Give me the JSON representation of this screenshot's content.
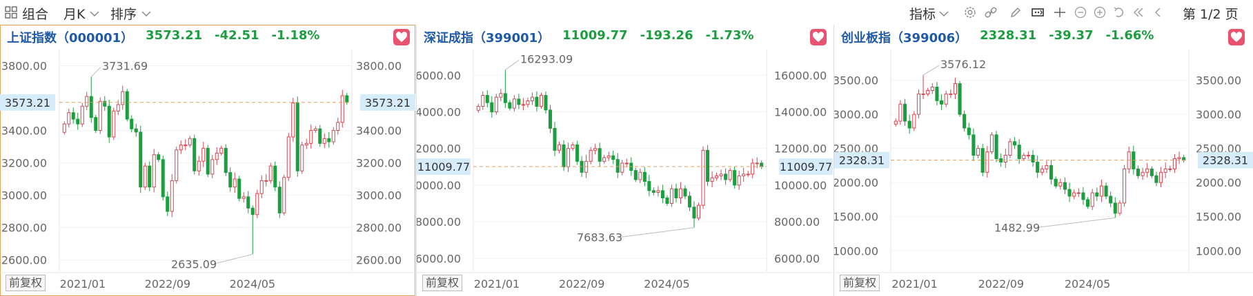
{
  "toolbar": {
    "combo_label": "组合",
    "period_label": "月K",
    "sort_label": "排序",
    "indicator_label": "指标",
    "page_label": "第 1/2 页"
  },
  "panels": [
    {
      "name": "上证指数（000001）",
      "price": "3573.21",
      "change": "-42.51",
      "change_pct": "-1.18%",
      "current_label": "3573.21",
      "adjust_label": "前复权",
      "high_label": "3731.69",
      "low_label": "2635.09"
    },
    {
      "name": "深证成指（399001）",
      "price": "11009.77",
      "change": "-193.26",
      "change_pct": "-1.73%",
      "current_label": "11009.77",
      "adjust_label": "前复权",
      "high_label": "16293.09",
      "low_label": "7683.63"
    },
    {
      "name": "创业板指（399006）",
      "price": "2328.31",
      "change": "-39.37",
      "change_pct": "-1.66%",
      "current_label": "2328.31",
      "adjust_label": "前复权",
      "high_label": "3576.12",
      "low_label": "1482.99"
    }
  ],
  "colors": {
    "up": "#d9434f",
    "down": "#1a9e3f",
    "accent": "#1f5aa8",
    "current_bg": "#d7ecfb",
    "current_line": "#e59a5a"
  },
  "chart_data": [
    {
      "type": "candlestick",
      "title": "上证指数（000001）",
      "x_ticks": [
        "2021/01",
        "2022/09",
        "2024/05"
      ],
      "y_ticks": [
        2600,
        2800,
        3000,
        3200,
        3400,
        3800
      ],
      "ylim": [
        2530,
        3900
      ],
      "current": 3573.21,
      "annotations": [
        {
          "text": "3731.69",
          "value": 3731.69
        },
        {
          "text": "2635.09",
          "value": 2635.09
        }
      ],
      "closes": [
        3440,
        3510,
        3470,
        3440,
        3550,
        3610,
        3480,
        3400,
        3580,
        3550,
        3360,
        3520,
        3560,
        3640,
        3470,
        3410,
        3390,
        3050,
        3180,
        3050,
        3250,
        3220,
        2990,
        2900,
        3090,
        3280,
        3310,
        3310,
        3350,
        3150,
        3210,
        3290,
        3130,
        3220,
        3260,
        3290,
        3140,
        3050,
        3100,
        2980,
        2990,
        2920,
        2880,
        3010,
        3090,
        3090,
        3180,
        3050,
        2890,
        3110,
        3360,
        3570,
        3150,
        3310,
        3320,
        3400,
        3410,
        3320,
        3350,
        3330,
        3400,
        3450,
        3615,
        3573
      ]
    },
    {
      "type": "candlestick",
      "title": "深证成指（399001）",
      "x_ticks": [
        "2021/01",
        "2022/09",
        "2024/05"
      ],
      "y_ticks": [
        6000,
        8000,
        10000,
        12000,
        14000,
        16000
      ],
      "ylim": [
        5300,
        17400
      ],
      "current": 11009.77,
      "annotations": [
        {
          "text": "16293.09",
          "value": 16293.09
        },
        {
          "text": "7683.63",
          "value": 7683.63
        }
      ],
      "closes": [
        14300,
        14900,
        14500,
        14000,
        14800,
        15000,
        14500,
        14200,
        14700,
        14400,
        14400,
        14600,
        14800,
        14300,
        14900,
        14100,
        13100,
        11900,
        12200,
        11000,
        12000,
        12200,
        11300,
        10700,
        11300,
        11900,
        12000,
        11300,
        11500,
        11600,
        11400,
        10700,
        11200,
        11200,
        10800,
        10300,
        10700,
        10200,
        9700,
        9600,
        9700,
        9300,
        9000,
        9800,
        9300,
        9800,
        9400,
        8800,
        8200,
        8900,
        11900,
        10200,
        10400,
        10500,
        10600,
        10300,
        10800,
        10000,
        10500,
        10600,
        10600,
        11200,
        11203,
        11009
      ]
    },
    {
      "type": "candlestick",
      "title": "创业板指（399006）",
      "x_ticks": [
        "2021/01",
        "2022/09",
        "2024/05"
      ],
      "y_ticks": [
        1000,
        1500,
        2000,
        2500,
        3000,
        3500
      ],
      "ylim": [
        700,
        3950
      ],
      "current": 2328.31,
      "annotations": [
        {
          "text": "3576.12",
          "value": 3576.12
        },
        {
          "text": "1482.99",
          "value": 1482.99
        }
      ],
      "closes": [
        2900,
        3150,
        2900,
        2800,
        3000,
        3300,
        3300,
        3350,
        3400,
        3200,
        3150,
        3300,
        3300,
        3450,
        3000,
        2800,
        2700,
        2400,
        2500,
        2150,
        2450,
        2700,
        2350,
        2300,
        2400,
        2600,
        2550,
        2350,
        2400,
        2400,
        2300,
        2150,
        2200,
        2250,
        2050,
        1950,
        2000,
        1900,
        1800,
        1850,
        1850,
        1750,
        1650,
        1850,
        1800,
        1950,
        1800,
        1700,
        1550,
        1700,
        2200,
        2450,
        2200,
        2100,
        2150,
        2200,
        2100,
        2000,
        2150,
        2200,
        2200,
        2350,
        2367,
        2328
      ]
    }
  ]
}
